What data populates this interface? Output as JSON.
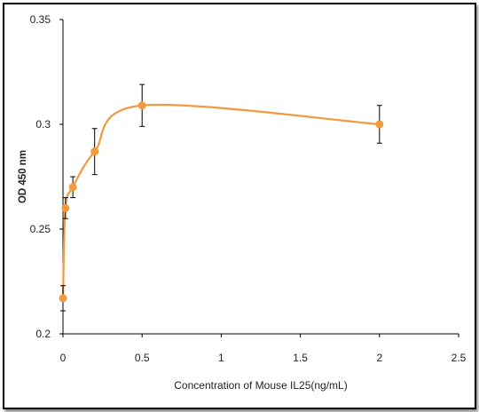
{
  "chart_data": {
    "type": "scatter",
    "title": "",
    "xlabel": "Concentration of Mouse IL25(ng/mL)",
    "ylabel": "OD 450 nm",
    "xlim": [
      0,
      2.5
    ],
    "ylim": [
      0.2,
      0.35
    ],
    "x_ticks": [
      "0",
      "0.5",
      "1",
      "1.5",
      "2",
      "2.5"
    ],
    "y_ticks": [
      "0.2",
      "0.25",
      "0.3",
      "0.35"
    ],
    "grid": false,
    "series": [
      {
        "x": [
          0,
          0.0156,
          0.0625,
          0.2,
          0.5,
          2
        ],
        "y": [
          0.217,
          0.26,
          0.27,
          0.287,
          0.309,
          0.3
        ],
        "error": [
          0.006,
          0.005,
          0.005,
          0.011,
          0.01,
          0.009
        ],
        "color": "#F19A3E",
        "smoothed_line": true
      }
    ]
  }
}
